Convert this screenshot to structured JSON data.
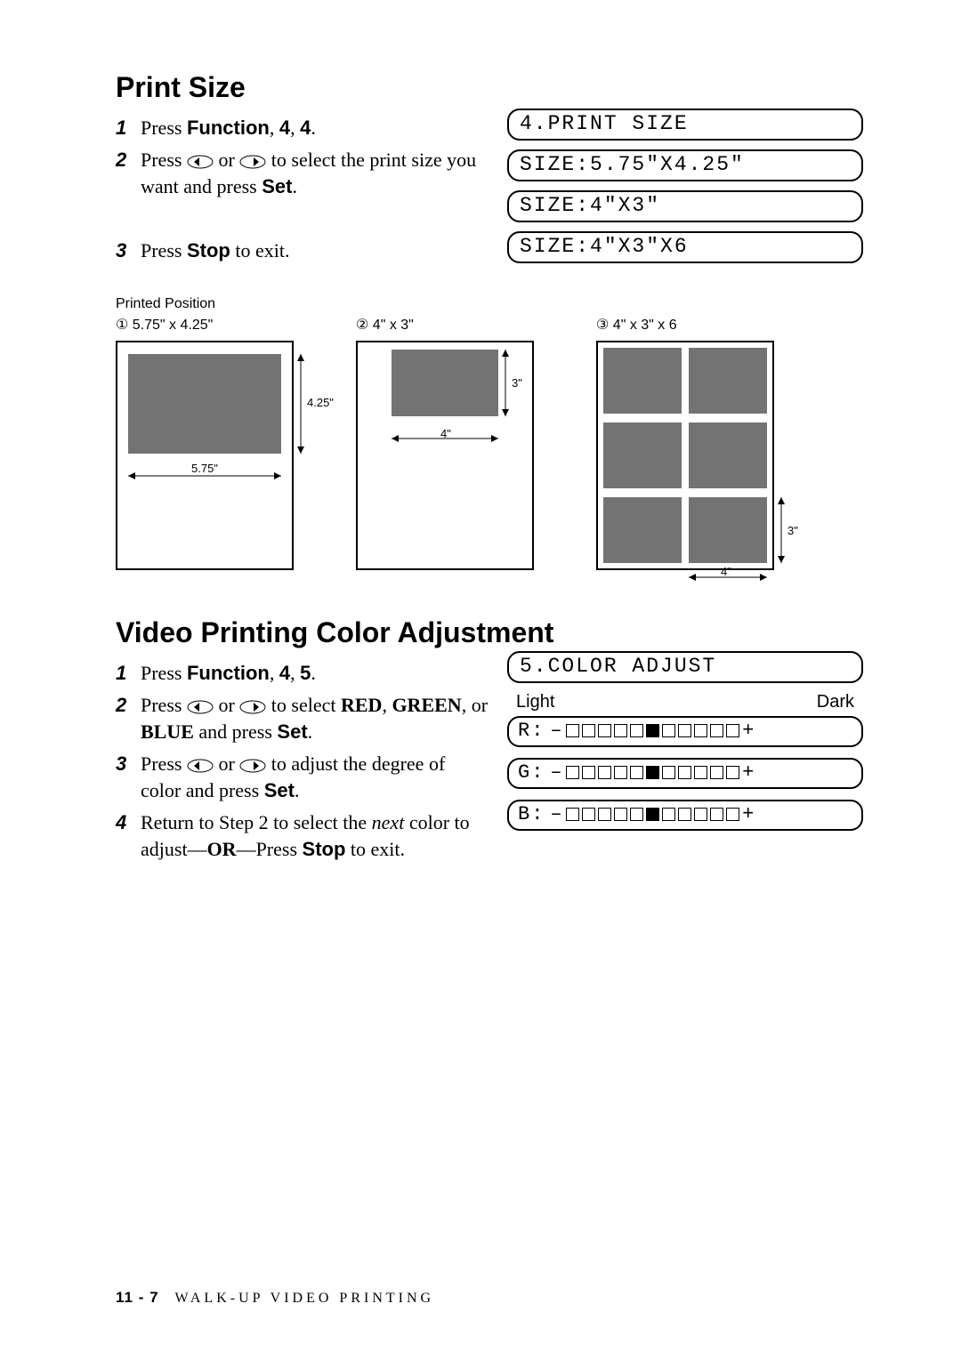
{
  "section1": {
    "heading": "Print Size",
    "steps": {
      "s1_num": "1",
      "s1_a": "Press ",
      "s1_b": "Function",
      "s1_c": ", ",
      "s1_d": "4",
      "s1_e": ", ",
      "s1_f": "4",
      "s1_g": ".",
      "s2_num": "2",
      "s2_a": "Press ",
      "s2_b": " or ",
      "s2_c": " to select the print size you want and press ",
      "s2_d": "Set",
      "s2_e": ".",
      "s3_num": "3",
      "s3_a": "Press ",
      "s3_b": "Stop",
      "s3_c": " to exit."
    },
    "lcds": {
      "l1": "4.PRINT SIZE",
      "l2": "SIZE:5.75\"X4.25\"",
      "l3": "SIZE:4\"X3\"",
      "l4": "SIZE:4\"X3\"X6"
    }
  },
  "diagrams": {
    "pp_label": "Printed Position",
    "d1_label": "① 5.75\" x 4.25\"",
    "d2_label": "② 4\" x 3\"",
    "d3_label": "③ 4\" x 3\" x 6",
    "dim_575": "5.75\"",
    "dim_425": "4.25\"",
    "dim_4": "4\"",
    "dim_3": "3\"",
    "colors": {
      "gray": "#737373",
      "border": "#000000"
    }
  },
  "section2": {
    "heading": "Video Printing Color Adjustment",
    "steps": {
      "s1_num": "1",
      "s1_a": "Press ",
      "s1_b": "Function",
      "s1_c": ", ",
      "s1_d": "4",
      "s1_e": ", ",
      "s1_f": "5",
      "s1_g": ".",
      "s2_num": "2",
      "s2_a": "Press ",
      "s2_b": " or ",
      "s2_c": " to select ",
      "s2_d": "RED",
      "s2_e": ", ",
      "s2_f": "GREEN",
      "s2_g": ", or ",
      "s2_h": "BLUE",
      "s2_i": " and press ",
      "s2_j": "Set",
      "s2_k": ".",
      "s3_num": "3",
      "s3_a": "Press ",
      "s3_b": " or ",
      "s3_c": " to adjust the degree of color and press ",
      "s3_d": "Set",
      "s3_e": ".",
      "s4_num": "4",
      "s4_a": "Return to Step 2 to select the ",
      "s4_b": "next",
      "s4_c": " color to adjust—",
      "s4_d": "OR",
      "s4_e": "—Press ",
      "s4_f": "Stop",
      "s4_g": " to exit."
    },
    "lcd_title": "5.COLOR ADJUST",
    "light": "Light",
    "dark": "Dark",
    "sliders": {
      "r_prefix": "R:",
      "g_prefix": "G:",
      "b_prefix": "B:",
      "minus": "–",
      "plus": "+",
      "filled_index": 5,
      "total": 11
    }
  },
  "footer": {
    "page": "11 - 7",
    "title": "WALK-UP VIDEO PRINTING"
  }
}
